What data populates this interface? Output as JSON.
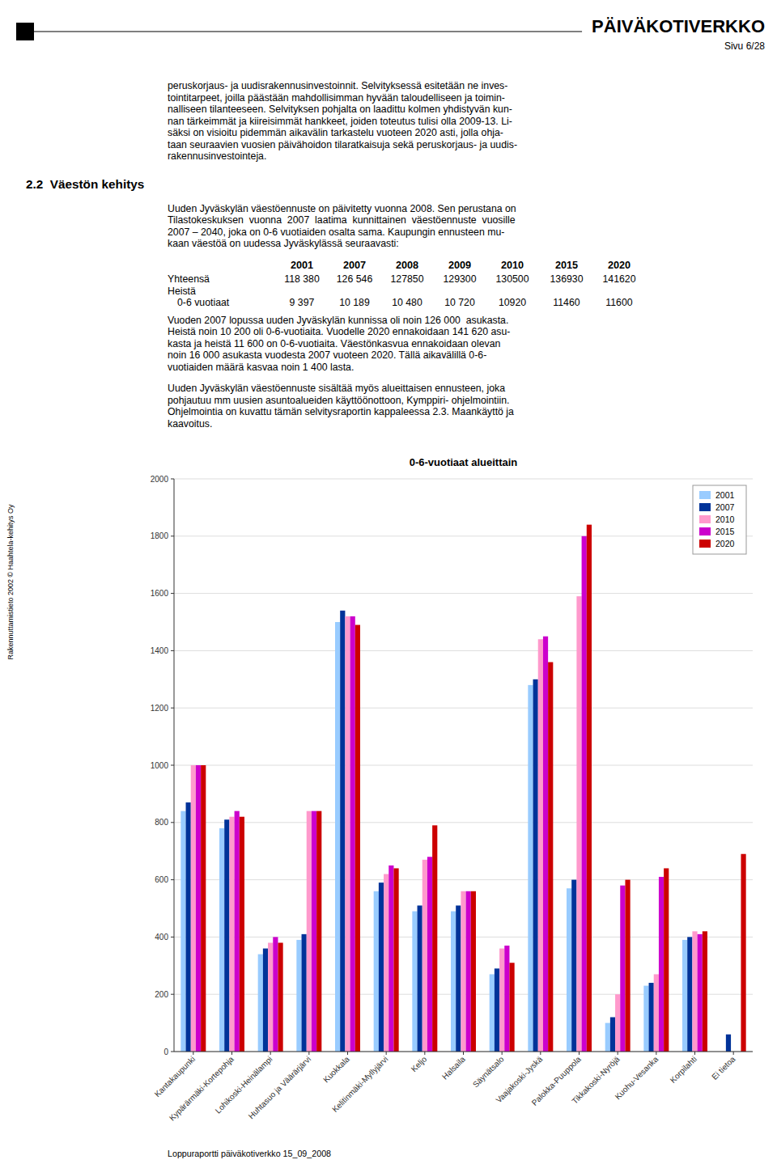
{
  "header_title": "PÄIVÄKOTIVERKKO",
  "header_subtitle": "Sivu 6/28",
  "sidebar_text": "Rakennuttamistieto 2002 © Haahtela-kehitys Oy",
  "section_heading": "2.2  Väestön kehitys",
  "paragraphs": [
    [
      "peruskorjaus- ja uudisrakennusinvestoinnit. Selvityksessä esitetään ne inves-",
      "tointitarpeet, joilla päästään mahdollisimman hyvään taloudelliseen ja toimin-",
      "nalliseen tilanteeseen. Selvityksen pohjalta on laadittu kolmen yhdistyvän kun-",
      "nan tärkeimmät ja kiireisimmät hankkeet, joiden toteutus tulisi olla 2009-13. Li-",
      "säksi on visioitu pidemmän aikavälin tarkastelu vuoteen 2020 asti, jolla ohja-",
      "taan seuraavien vuosien päivähoidon tilaratkaisuja sekä peruskorjaus- ja uudis-",
      "rakennusinvestointeja."
    ],
    [
      "Uuden Jyväskylän väestöennuste on päivitetty vuonna 2008. Sen perustana on",
      "Tilastokeskuksen  vuonna  2007  laatima  kunnittainen  väestöennuste  vuosille",
      "2007 – 2040, joka on 0-6 vuotiaiden osalta sama. Kaupungin ennusteen mu-",
      "kaan väestöä on uudessa Jyväskylässä seuraavasti:"
    ],
    [
      "Vuoden 2007 lopussa uuden Jyväskylän kunnissa oli noin 126 000  asukasta.",
      "Heistä noin 10 200 oli 0-6-vuotiaita. Vuodelle 2020 ennakoidaan 141 620 asu-",
      "kasta ja heistä 11 600 on 0-6-vuotiaita. Väestönkasvua ennakoidaan olevan",
      "noin 16 000 asukasta vuodesta 2007 vuoteen 2020. Tällä aikavälillä 0-6-",
      "vuotiaiden määrä kasvaa noin 1 400 lasta."
    ],
    [
      "Uuden Jyväskylän väestöennuste sisältää myös alueittaisen ennusteen, joka",
      "pohjautuu mm uusien asuntoalueiden käyttöönottoon, Kymppiri- ohjelmointiin.",
      "Ohjelmointia on kuvattu tämän selvitysraportin kappaleessa 2.3. Maankäyttö ja",
      "kaavoitus."
    ]
  ],
  "table": {
    "columns": [
      "2001",
      "2007",
      "2008",
      "2009",
      "2010",
      "2015",
      "2020"
    ],
    "rows": [
      {
        "label": "Yhteensä",
        "values": [
          "118 380",
          "126 546",
          "127850",
          "129300",
          "130500",
          "136930",
          "141620"
        ]
      },
      {
        "label": "Heistä"
      },
      {
        "label": "0-6 vuotiaat",
        "values": [
          "9 397",
          "10 189",
          "10 480",
          "10 720",
          "10920",
          "11460",
          "11600"
        ]
      }
    ]
  },
  "footer_text": "Loppuraportti päiväkotiverkko 15_09_2008",
  "chart_data": {
    "type": "bar",
    "title": "0-6-vuotiaat alueittain",
    "categories": [
      "Kantakaupunki",
      "Kypärärmäki-Kortepohja",
      "Lohikoski-Heinälampi",
      "Huhtasuo ja Väärärjärvi",
      "Kuokkala",
      "Kelitinmäki-Myllyjärvi",
      "Keljo",
      "Halsaila",
      "Säynätsalo",
      "Vaajakoski-Jyskä",
      "Palokka-Puuppola",
      "Tikkakoski-Nyröjä",
      "Kuohu-Vesanka",
      "Korpilahti",
      "Ei tietoa"
    ],
    "series": [
      {
        "name": "2001",
        "color": "#99ccff",
        "values": [
          840,
          780,
          340,
          390,
          1500,
          560,
          490,
          490,
          270,
          1280,
          570,
          100,
          230,
          390,
          0
        ]
      },
      {
        "name": "2007",
        "color": "#003399",
        "values": [
          870,
          810,
          360,
          410,
          1540,
          590,
          510,
          510,
          290,
          1300,
          600,
          120,
          240,
          400,
          60
        ]
      },
      {
        "name": "2010",
        "color": "#ff99cc",
        "values": [
          1000,
          820,
          380,
          840,
          1520,
          620,
          670,
          560,
          360,
          1440,
          1590,
          200,
          270,
          420,
          0
        ]
      },
      {
        "name": "2015",
        "color": "#cc00cc",
        "values": [
          1000,
          840,
          400,
          840,
          1520,
          650,
          680,
          560,
          370,
          1450,
          1800,
          580,
          610,
          410,
          0
        ]
      },
      {
        "name": "2020",
        "color": "#cc0000",
        "values": [
          1000,
          820,
          380,
          840,
          1490,
          640,
          790,
          560,
          310,
          1360,
          1840,
          600,
          640,
          420,
          690
        ]
      }
    ],
    "ylim": [
      0,
      2000
    ],
    "yticks": [
      0,
      200,
      400,
      600,
      800,
      1000,
      1200,
      1400,
      1600,
      1800,
      2000
    ],
    "grid": true,
    "legend": "upper right"
  }
}
